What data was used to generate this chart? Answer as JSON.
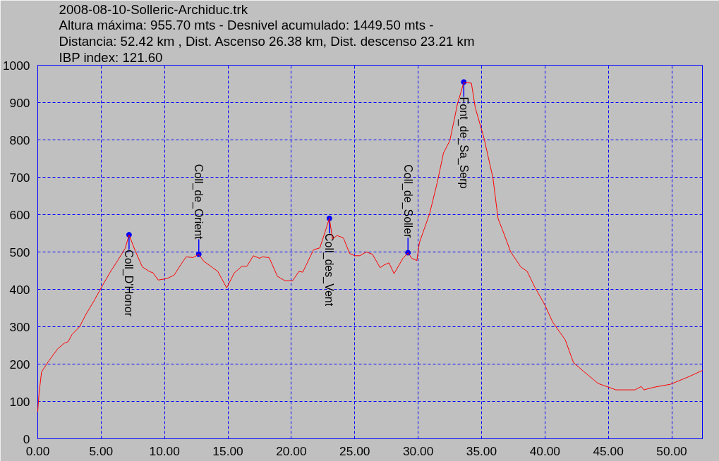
{
  "chart_data": {
    "type": "line",
    "title": "2008-08-10-Solleric-Archiduc.trk",
    "subtitle": "Altura máxima: 955.70 mts - Desnivel acumulado: 1449.50 mts -\nDistancia: 52.42 km , Dist. Ascenso 26.38 km, Dist. descenso 23.21 km\nIBP index: 121.60",
    "series": [
      {
        "color": "#ff0000",
        "x": [
          0,
          0.1,
          0.3,
          0.86,
          1.6,
          2.1,
          2.4,
          2.7,
          3.3,
          3.8,
          4.4,
          5.0,
          5.75,
          6.3,
          6.9,
          7.2,
          7.7,
          8.25,
          8.8,
          9.1,
          9.5,
          10.2,
          10.75,
          11.3,
          11.7,
          12.25,
          12.7,
          13.1,
          13.8,
          14.2,
          14.9,
          15.5,
          16.1,
          16.5,
          17.0,
          17.5,
          17.7,
          18.25,
          18.9,
          19.5,
          20.1,
          20.6,
          20.9,
          21.75,
          22.25,
          22.7,
          23.0,
          23.25,
          23.6,
          24.1,
          24.6,
          25.0,
          25.4,
          25.9,
          26.4,
          27.0,
          27.3,
          27.7,
          28.1,
          28.8,
          29.2,
          29.5,
          29.9,
          30.1,
          30.9,
          31.5,
          32.0,
          32.5,
          33.1,
          33.6,
          34.2,
          34.5,
          35.2,
          35.9,
          36.3,
          36.8,
          37.3,
          38.1,
          38.6,
          39.2,
          40.0,
          40.6,
          41.6,
          42.25,
          43.1,
          44.2,
          45.6,
          47.1,
          47.6,
          47.8,
          48.6,
          49.9,
          51.4,
          52.42
        ],
        "values": [
          73,
          121,
          179,
          208,
          242,
          256,
          260,
          279,
          300,
          333,
          367,
          404,
          448,
          477,
          510,
          546,
          502,
          460,
          448,
          444,
          425,
          429,
          438,
          467,
          487,
          485,
          494,
          475,
          458,
          448,
          404,
          444,
          462,
          462,
          490,
          483,
          487,
          485,
          435,
          423,
          423,
          448,
          446,
          506,
          511,
          558,
          590,
          535,
          544,
          538,
          496,
          490,
          490,
          500,
          494,
          458,
          465,
          471,
          442,
          483,
          498,
          483,
          477,
          525,
          602,
          685,
          765,
          798,
          896,
          954,
          952,
          887,
          804,
          698,
          590,
          546,
          500,
          460,
          448,
          406,
          358,
          313,
          265,
          204,
          179,
          148,
          131,
          131,
          140,
          131,
          138,
          146,
          167,
          183
        ]
      }
    ],
    "annotations": [
      {
        "text": "Coll_D'Honor",
        "x": 7.2,
        "y": 546
      },
      {
        "text": "Coll_de_Orient",
        "x": 12.7,
        "y": 494
      },
      {
        "text": "Coll_des_Vent",
        "x": 23.0,
        "y": 590
      },
      {
        "text": "Coll_de_Soller",
        "x": 29.2,
        "y": 498
      },
      {
        "text": "Font_de_Sa_Serp",
        "x": 33.6,
        "y": 955
      }
    ],
    "xlim": [
      0,
      52.42
    ],
    "xticks": [
      {
        "value": 0,
        "label": "0.00"
      },
      {
        "value": 5,
        "label": "5.00"
      },
      {
        "value": 10,
        "label": "10.00"
      },
      {
        "value": 15,
        "label": "15.00"
      },
      {
        "value": 20,
        "label": "20.00"
      },
      {
        "value": 25,
        "label": "25.00"
      },
      {
        "value": 30,
        "label": "30.00"
      },
      {
        "value": 35,
        "label": "35.00"
      },
      {
        "value": 40,
        "label": "40.00"
      },
      {
        "value": 45,
        "label": "45.00"
      },
      {
        "value": 50,
        "label": "50.00"
      }
    ],
    "ylim": [
      0,
      1000
    ],
    "yticks": [
      0,
      100,
      200,
      300,
      400,
      500,
      600,
      700,
      800,
      900,
      1000
    ],
    "grid": true,
    "marker": "none",
    "line_style": "solid"
  }
}
